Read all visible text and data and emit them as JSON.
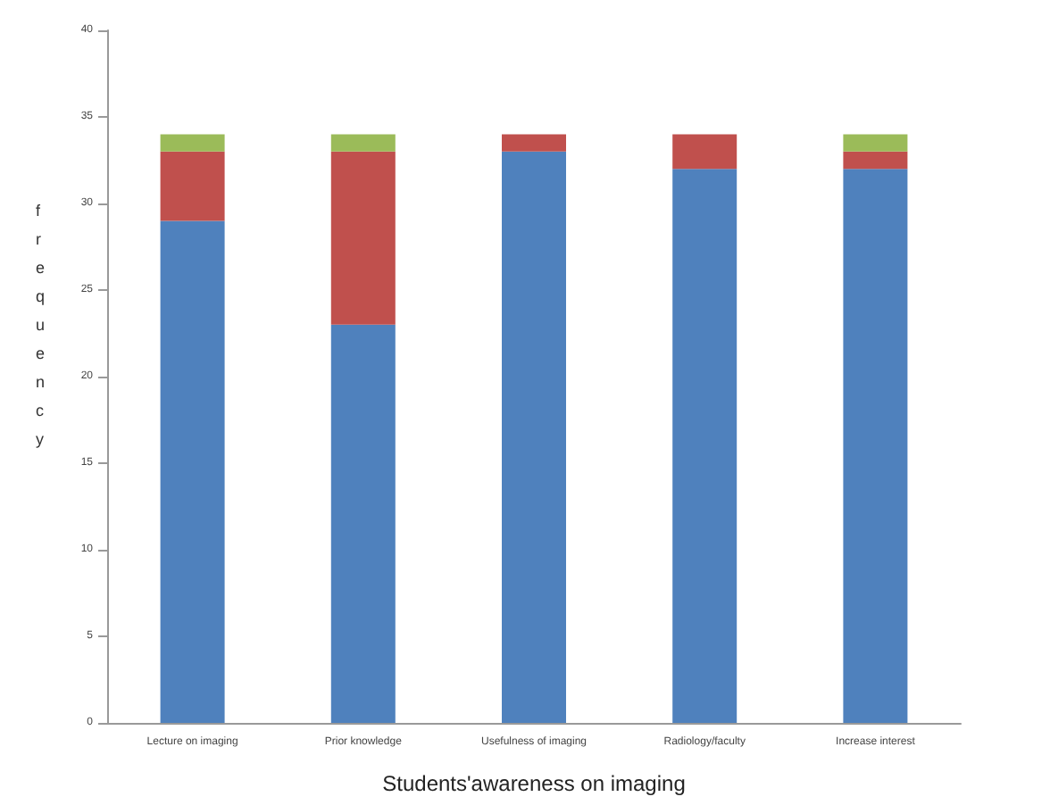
{
  "chart_data": {
    "type": "bar",
    "stacked": true,
    "xlabel": "Students'awareness on imaging",
    "ylabel": "frequency",
    "categories": [
      "Lecture on imaging",
      "Prior knowledge",
      "Usefulness of imaging",
      "Radiology/faculty",
      "Increase interest"
    ],
    "series": [
      {
        "color": "#4f81bd",
        "values": [
          29,
          23,
          33,
          32,
          32
        ]
      },
      {
        "color": "#c0504d",
        "values": [
          4,
          10,
          1,
          2,
          1
        ]
      },
      {
        "color": "#9bbb59",
        "values": [
          1,
          1,
          0,
          0,
          1
        ]
      }
    ],
    "ylim": [
      0,
      40
    ],
    "yticks": [
      0,
      5,
      10,
      15,
      20,
      25,
      30,
      35,
      40
    ],
    "grid": false
  }
}
